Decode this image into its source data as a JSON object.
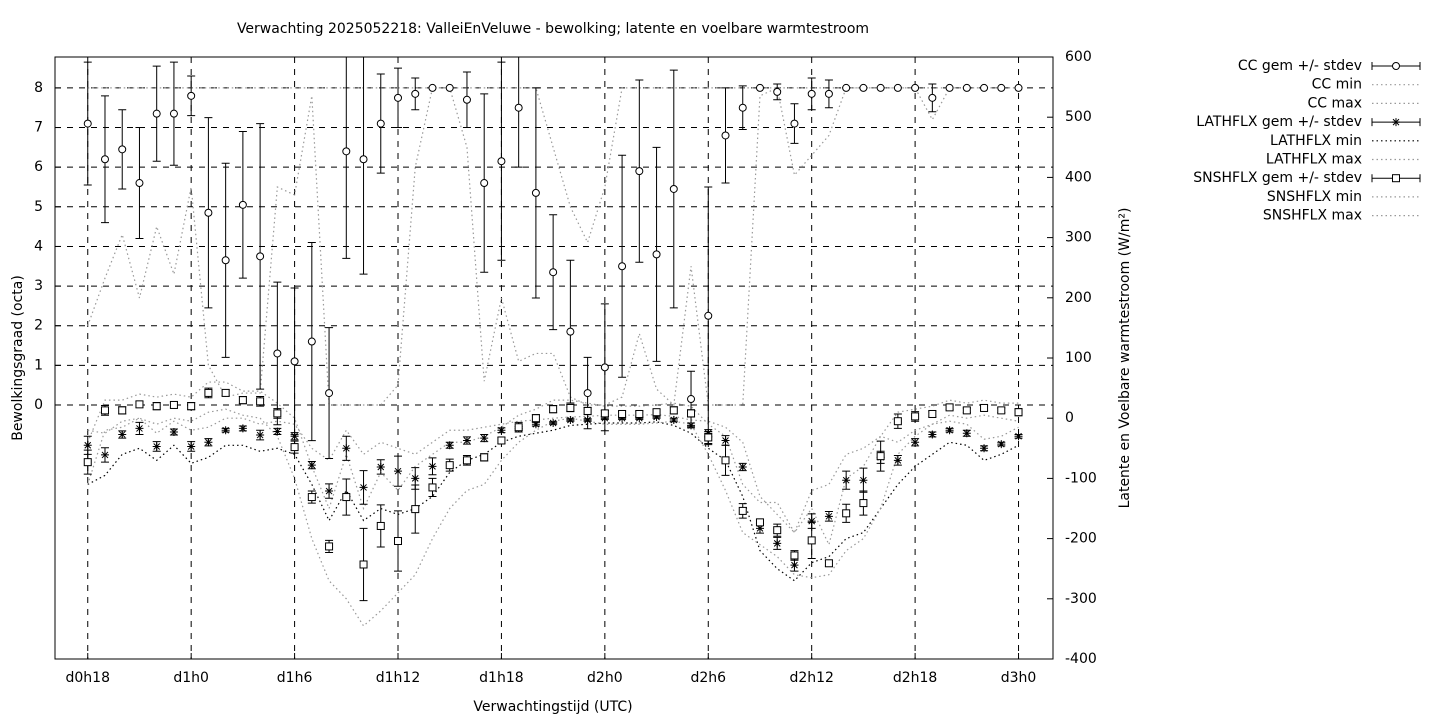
{
  "chart_data": {
    "type": "errorbar",
    "title": "Verwachting 2025052218: ValleiEnVeluwe - bewolking; latente en voelbare warmtestroom",
    "xlabel": "Verwachtingstijd (UTC)",
    "ylabel": "Bewolkingsgraad (octa)",
    "y2label": "Latente en Voelbare warmtestroom (W/m²)",
    "x": [
      18,
      19,
      20,
      21,
      22,
      23,
      24,
      25,
      26,
      27,
      28,
      29,
      30,
      31,
      32,
      33,
      34,
      35,
      36,
      37,
      38,
      39,
      40,
      41,
      42,
      43,
      44,
      45,
      46,
      47,
      48,
      49,
      50,
      51,
      52,
      53,
      54,
      55,
      56,
      57,
      58,
      59,
      60,
      61,
      62,
      63,
      64,
      65,
      66,
      67,
      68,
      69,
      70,
      71,
      72
    ],
    "xlim": [
      16.1,
      74
    ],
    "xticks": [
      {
        "value": 18,
        "label": "d0h18"
      },
      {
        "value": 24,
        "label": "d1h0"
      },
      {
        "value": 30,
        "label": "d1h6"
      },
      {
        "value": 36,
        "label": "d1h12"
      },
      {
        "value": 42,
        "label": "d1h18"
      },
      {
        "value": 48,
        "label": "d2h0"
      },
      {
        "value": 54,
        "label": "d2h6"
      },
      {
        "value": 60,
        "label": "d2h12"
      },
      {
        "value": 66,
        "label": "d2h18"
      },
      {
        "value": 72,
        "label": "d3h0"
      }
    ],
    "ylim": [
      -6.41,
      8.78
    ],
    "yticks": [
      0,
      1,
      2,
      3,
      4,
      5,
      6,
      7,
      8
    ],
    "y2lim": [
      -400,
      600
    ],
    "y2ticks": [
      -400,
      -300,
      -200,
      -100,
      0,
      100,
      200,
      300,
      400,
      500,
      600
    ],
    "grid": true,
    "legend": "outside-right",
    "series": [
      {
        "name": "CC gem +/- stdev",
        "marker": "circle",
        "color": "#000000",
        "values": [
          7.1,
          6.2,
          6.45,
          5.6,
          7.35,
          7.35,
          7.8,
          4.85,
          3.65,
          5.05,
          3.75,
          1.3,
          1.1,
          1.6,
          0.3,
          6.4,
          6.2,
          7.1,
          7.75,
          7.85,
          8,
          8,
          7.7,
          5.6,
          6.15,
          7.5,
          5.35,
          3.35,
          1.85,
          0.3,
          0.95,
          3.5,
          5.9,
          3.8,
          5.45,
          0.15,
          2.25,
          6.8,
          7.5,
          8,
          7.9,
          7.1,
          7.85,
          7.85,
          8,
          8,
          8,
          8,
          8,
          7.75,
          8,
          8,
          8,
          8,
          8
        ],
        "error": [
          1.55,
          1.6,
          1.0,
          1.4,
          1.2,
          1.3,
          0.5,
          2.4,
          2.45,
          1.85,
          3.35,
          1.8,
          1.85,
          2.5,
          1.65,
          2.7,
          2.9,
          1.25,
          0.75,
          0.4,
          0,
          0,
          0.7,
          2.25,
          2.5,
          1.5,
          2.65,
          1.45,
          1.8,
          0.9,
          1.6,
          2.8,
          2.3,
          2.7,
          3.0,
          0.7,
          3.25,
          1.2,
          0.55,
          0,
          0.2,
          0.5,
          0.4,
          0.35,
          0,
          0,
          0,
          0,
          0,
          0.35,
          0,
          0,
          0,
          0,
          0
        ]
      },
      {
        "name": "CC min",
        "style": "dotted",
        "color": "#999999",
        "values": [
          2.0,
          3.2,
          4.3,
          2.7,
          4.5,
          3.3,
          5.5,
          1.0,
          0.2,
          0.3,
          0.3,
          5.5,
          5.3,
          7.8,
          0,
          0,
          0,
          0,
          0.5,
          6,
          8,
          8,
          6.5,
          0.6,
          2.7,
          1.1,
          1.3,
          1.3,
          0.2,
          0,
          0,
          0.2,
          1.8,
          0.4,
          0,
          3.5,
          0,
          0,
          0,
          7.8,
          8,
          5.8,
          6.3,
          6.8,
          8,
          8,
          8,
          8,
          8,
          7.2,
          8,
          8,
          8,
          8,
          8
        ]
      },
      {
        "name": "CC max",
        "style": "dotted",
        "color": "#999999",
        "values": [
          8,
          8,
          8,
          8,
          8,
          8,
          8,
          8,
          8,
          8,
          8,
          8,
          8,
          8,
          8,
          8,
          8,
          8,
          8,
          8,
          8,
          8,
          8,
          8,
          8,
          8,
          8,
          6.5,
          5.0,
          4.1,
          5.5,
          8,
          8,
          8,
          8,
          8,
          8,
          8,
          8,
          8,
          8,
          8,
          8,
          8,
          8,
          8,
          8,
          8,
          8,
          8,
          8,
          8,
          8,
          8,
          8
        ]
      },
      {
        "name": "LATHFLX gem +/- stdev",
        "marker": "asterisk",
        "color": "#000000",
        "axis": "y2",
        "values": [
          -45,
          -61,
          -27,
          -17,
          -47,
          -23,
          -47,
          -40,
          -20,
          -17,
          -28,
          -22,
          -30,
          -78,
          -121,
          -50,
          -115,
          -81,
          -88,
          -100,
          -80,
          -45,
          -37,
          -33,
          -20,
          -17,
          -10,
          -8,
          -3,
          -3,
          0,
          0,
          0,
          2,
          -3,
          -12,
          -25,
          -37,
          -81,
          -183,
          -208,
          -244,
          -171,
          -163,
          -103,
          -103,
          -65,
          -70,
          -40,
          -27,
          -20,
          -25,
          -50,
          -43,
          -30
        ],
        "error": [
          15,
          12,
          6,
          10,
          8,
          5,
          8,
          6,
          3,
          4,
          8,
          5,
          6,
          6,
          12,
          20,
          28,
          12,
          25,
          18,
          14,
          5,
          6,
          6,
          4,
          3,
          3,
          2,
          2,
          2,
          2,
          2,
          2,
          2,
          3,
          4,
          6,
          8,
          6,
          8,
          10,
          10,
          12,
          8,
          15,
          20,
          10,
          8,
          6,
          4,
          3,
          5,
          4,
          3,
          3
        ]
      },
      {
        "name": "LATHFLX min",
        "style": "dotted",
        "color": "#000000",
        "axis": "y2",
        "values": [
          -110,
          -95,
          -60,
          -50,
          -70,
          -45,
          -75,
          -65,
          -45,
          -45,
          -55,
          -50,
          -60,
          -110,
          -170,
          -120,
          -170,
          -150,
          -160,
          -150,
          -130,
          -90,
          -70,
          -60,
          -40,
          -30,
          -25,
          -20,
          -12,
          -10,
          -8,
          -8,
          -8,
          -6,
          -12,
          -25,
          -50,
          -70,
          -130,
          -220,
          -250,
          -270,
          -240,
          -230,
          -200,
          -190,
          -150,
          -110,
          -80,
          -60,
          -40,
          -45,
          -70,
          -60,
          -45
        ]
      },
      {
        "name": "LATHFLX max",
        "style": "dotted",
        "color": "#999999",
        "axis": "y2",
        "values": [
          -20,
          -25,
          -5,
          0,
          -25,
          -5,
          -20,
          -15,
          0,
          0,
          -10,
          -5,
          -10,
          -50,
          -70,
          -20,
          -60,
          -40,
          -50,
          -60,
          -40,
          -20,
          -20,
          -15,
          -10,
          -5,
          -3,
          0,
          2,
          3,
          5,
          5,
          5,
          6,
          3,
          -3,
          -5,
          -15,
          -40,
          -130,
          -160,
          -190,
          -120,
          -110,
          -60,
          -50,
          -30,
          -40,
          -20,
          -10,
          -5,
          -10,
          -35,
          -30,
          -15
        ]
      },
      {
        "name": "SNSHFLX gem +/- stdev",
        "marker": "square",
        "color": "#000000",
        "axis": "y2",
        "values": [
          -73,
          13,
          13,
          23,
          20,
          22,
          20,
          42,
          42,
          30,
          28,
          8,
          -48,
          -131,
          -213,
          -131,
          -243,
          -179,
          -204,
          -151,
          -115,
          -78,
          -70,
          -65,
          -37,
          -15,
          0,
          15,
          17,
          12,
          8,
          7,
          7,
          10,
          13,
          8,
          -32,
          -70,
          -154,
          -173,
          -186,
          -228,
          -203,
          -241,
          -158,
          -141,
          -63,
          -5,
          3,
          7,
          18,
          13,
          17,
          13,
          10
        ],
        "error": [
          20,
          8,
          6,
          5,
          6,
          5,
          6,
          8,
          5,
          6,
          8,
          8,
          10,
          10,
          10,
          30,
          60,
          35,
          50,
          40,
          15,
          10,
          8,
          6,
          5,
          8,
          6,
          6,
          6,
          6,
          5,
          5,
          5,
          5,
          6,
          6,
          10,
          25,
          12,
          5,
          10,
          8,
          30,
          5,
          15,
          20,
          25,
          12,
          8,
          5,
          4,
          4,
          4,
          4,
          6
        ]
      },
      {
        "name": "SNSHFLX min",
        "style": "dotted",
        "color": "#999999",
        "axis": "y2",
        "values": [
          -110,
          -20,
          -15,
          0,
          -10,
          0,
          -5,
          10,
          15,
          5,
          0,
          -30,
          -100,
          -200,
          -270,
          -300,
          -345,
          -320,
          -290,
          -260,
          -200,
          -150,
          -120,
          -110,
          -70,
          -40,
          -20,
          -5,
          0,
          -5,
          -10,
          -10,
          -10,
          -8,
          -5,
          -10,
          -60,
          -120,
          -190,
          -210,
          -230,
          -260,
          -265,
          -260,
          -220,
          -200,
          -150,
          -60,
          -30,
          -10,
          5,
          0,
          5,
          0,
          -5
        ]
      },
      {
        "name": "SNSHFLX max",
        "style": "dotted",
        "color": "#999999",
        "axis": "y2",
        "values": [
          -40,
          30,
          30,
          40,
          35,
          40,
          35,
          60,
          60,
          45,
          45,
          25,
          0,
          -80,
          -150,
          -60,
          -150,
          -90,
          -120,
          -80,
          -60,
          -40,
          -40,
          -30,
          -15,
          5,
          15,
          30,
          30,
          25,
          20,
          20,
          20,
          22,
          25,
          20,
          -10,
          -30,
          -110,
          -140,
          -140,
          -190,
          -150,
          -210,
          -100,
          -80,
          -30,
          10,
          15,
          20,
          30,
          25,
          30,
          25,
          25
        ]
      }
    ]
  }
}
